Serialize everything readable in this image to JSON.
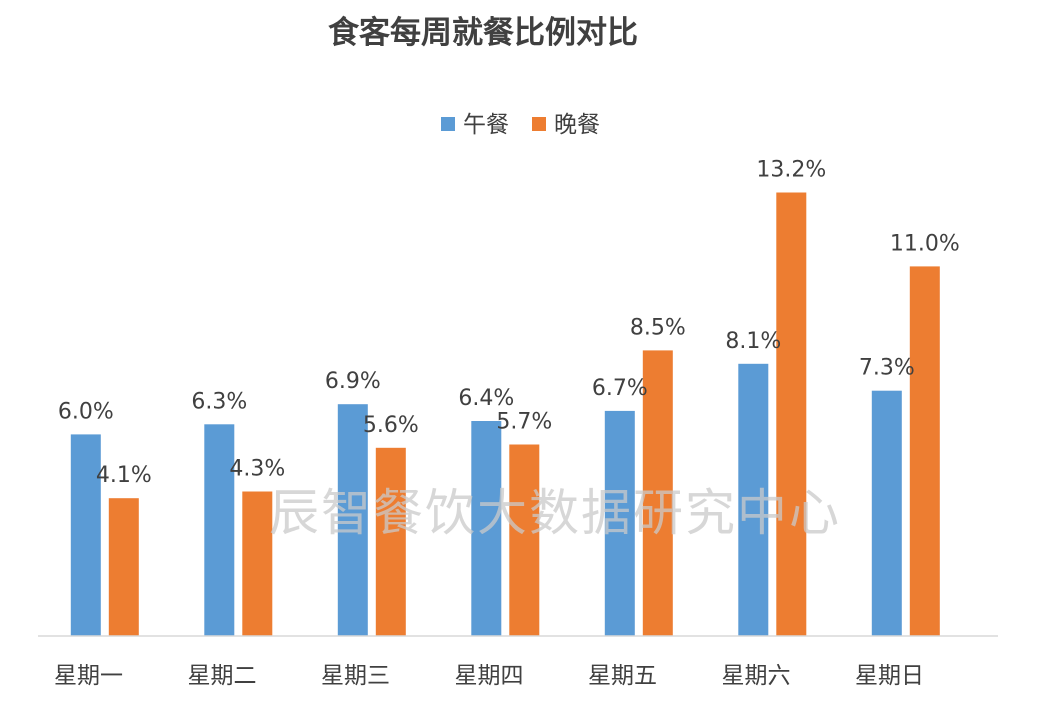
{
  "chart_data": {
    "type": "bar",
    "title": "食客每周就餐比例对比",
    "categories": [
      "星期一",
      "星期二",
      "星期三",
      "星期四",
      "星期五",
      "星期六",
      "星期日"
    ],
    "series": [
      {
        "name": "午餐",
        "color": "#5B9BD5",
        "values": [
          6.0,
          6.3,
          6.9,
          6.4,
          6.7,
          8.1,
          7.3
        ],
        "labels": [
          "6.0%",
          "6.3%",
          "6.9%",
          "6.4%",
          "6.7%",
          "8.1%",
          "7.3%"
        ]
      },
      {
        "name": "晚餐",
        "color": "#ED7D31",
        "values": [
          4.1,
          4.3,
          5.6,
          5.7,
          8.5,
          13.2,
          11.0
        ],
        "labels": [
          "4.1%",
          "4.3%",
          "5.6%",
          "5.7%",
          "8.5%",
          "13.2%",
          "11.0%"
        ]
      }
    ],
    "ylim": [
      0,
      14
    ],
    "grid": false,
    "legend_position": "top"
  },
  "watermark": "辰智餐饮大数据研究中心"
}
